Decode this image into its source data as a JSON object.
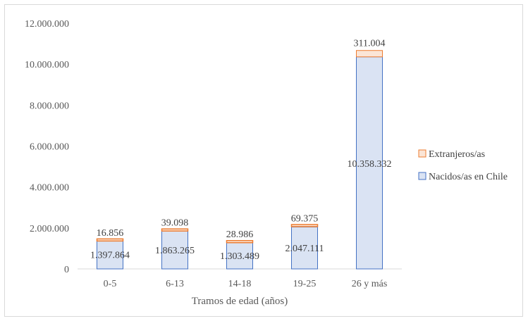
{
  "chart_data": {
    "type": "bar",
    "stacked": true,
    "title": "",
    "xlabel": "Tramos de edad (años)",
    "ylabel": "",
    "ylim": [
      0,
      12000000
    ],
    "y_ticks": [
      0,
      2000000,
      4000000,
      6000000,
      8000000,
      10000000,
      12000000
    ],
    "y_tick_labels": [
      "0",
      "2.000.000",
      "4.000.000",
      "6.000.000",
      "8.000.000",
      "10.000.000",
      "12.000.000"
    ],
    "categories": [
      "0-5",
      "6-13",
      "14-18",
      "19-25",
      "26 y más"
    ],
    "series": [
      {
        "name": "Nacidos/as en Chile",
        "color": "#dae3f3",
        "edge": "#4472c4",
        "values": [
          1397864,
          1863265,
          1303489,
          2047111,
          10358332
        ],
        "labels": [
          "1.397.864",
          "1.863.265",
          "1.303.489",
          "2.047.111",
          "10.358.332"
        ]
      },
      {
        "name": "Extranjeros/as",
        "color": "#fbe5d6",
        "edge": "#ed7d31",
        "values": [
          16856,
          39098,
          28986,
          69375,
          311004
        ],
        "labels": [
          "16.856",
          "39.098",
          "28.986",
          "69.375",
          "311.004"
        ]
      }
    ],
    "grid": false,
    "legend_position": "right"
  }
}
